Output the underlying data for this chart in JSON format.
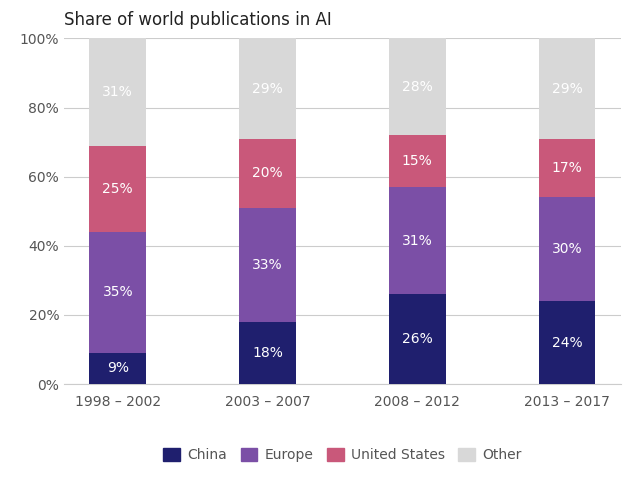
{
  "title": "Share of world publications in AI",
  "categories": [
    "1998 – 2002",
    "2003 – 2007",
    "2008 – 2012",
    "2013 – 2017"
  ],
  "series": {
    "China": [
      9,
      18,
      26,
      24
    ],
    "Europe": [
      35,
      33,
      31,
      30
    ],
    "United States": [
      25,
      20,
      15,
      17
    ],
    "Other": [
      31,
      29,
      28,
      29
    ]
  },
  "colors": {
    "China": "#1f1f6e",
    "Europe": "#7b4fa6",
    "United States": "#c9587a",
    "Other": "#d8d8d8"
  },
  "bar_width": 0.38,
  "ylim": [
    0,
    100
  ],
  "yticks": [
    0,
    20,
    40,
    60,
    80,
    100
  ],
  "ytick_labels": [
    "0%",
    "20%",
    "40%",
    "60%",
    "80%",
    "100%"
  ],
  "label_color": "#ffffff",
  "label_fontsize": 10,
  "title_fontsize": 12,
  "background_color": "#ffffff",
  "legend_order": [
    "China",
    "Europe",
    "United States",
    "Other"
  ],
  "grid_color": "#cccccc",
  "spine_color": "#cccccc",
  "tick_label_color": "#555555",
  "tick_label_fontsize": 10
}
